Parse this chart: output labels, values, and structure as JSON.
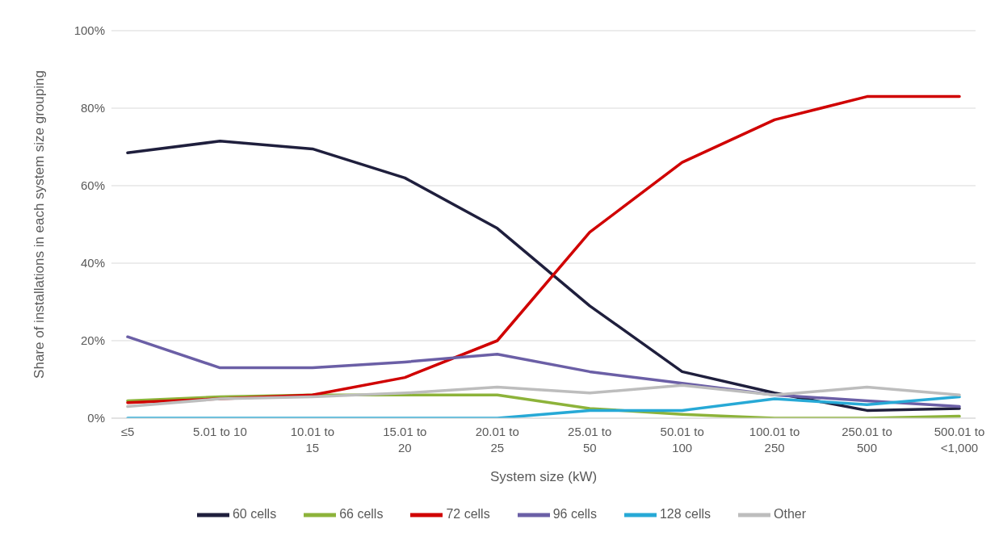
{
  "chart_data": {
    "type": "line",
    "xlabel": "System size (kW)",
    "ylabel": "Share of installations in each system size grouping",
    "categories": [
      "≤5",
      "5.01 to 10",
      "10.01 to 15",
      "15.01 to 20",
      "20.01 to 25",
      "25.01 to 50",
      "50.01 to 100",
      "100.01 to 250",
      "250.01 to 500",
      "500.01 to <1,000"
    ],
    "series": [
      {
        "name": "60 cells",
        "color": "#1f1f3d",
        "values": [
          68.5,
          71.5,
          69.5,
          62,
          49,
          29,
          12,
          6.5,
          2,
          2.5
        ]
      },
      {
        "name": "66 cells",
        "color": "#8db33a",
        "values": [
          4.5,
          5.5,
          6,
          6,
          6,
          2.5,
          1,
          0,
          0,
          0.5
        ]
      },
      {
        "name": "72 cells",
        "color": "#d00000",
        "values": [
          4,
          5,
          6,
          10.5,
          20,
          48,
          66,
          77,
          83,
          83
        ]
      },
      {
        "name": "96 cells",
        "color": "#6b5fa6",
        "values": [
          21,
          13,
          13,
          14.5,
          16.5,
          12,
          9,
          6,
          4.5,
          3
        ]
      },
      {
        "name": "128 cells",
        "color": "#27a9d6",
        "values": [
          0,
          0,
          0,
          0,
          0,
          2,
          2,
          5,
          3.5,
          5.5
        ]
      },
      {
        "name": "Other",
        "color": "#bdbdbd",
        "values": [
          3,
          5,
          5.5,
          6.5,
          8,
          6.5,
          8.5,
          6,
          8,
          6
        ]
      }
    ],
    "ylim": [
      0,
      100
    ],
    "yticks": [
      {
        "value": 0,
        "label": "0%"
      },
      {
        "value": 20,
        "label": "20%"
      },
      {
        "value": 40,
        "label": "40%"
      },
      {
        "value": 60,
        "label": "60%"
      },
      {
        "value": 80,
        "label": "80%"
      },
      {
        "value": 100,
        "label": "100%"
      }
    ],
    "grid": "y",
    "legend": "bottom",
    "marker": "none",
    "line_style": "solid"
  }
}
